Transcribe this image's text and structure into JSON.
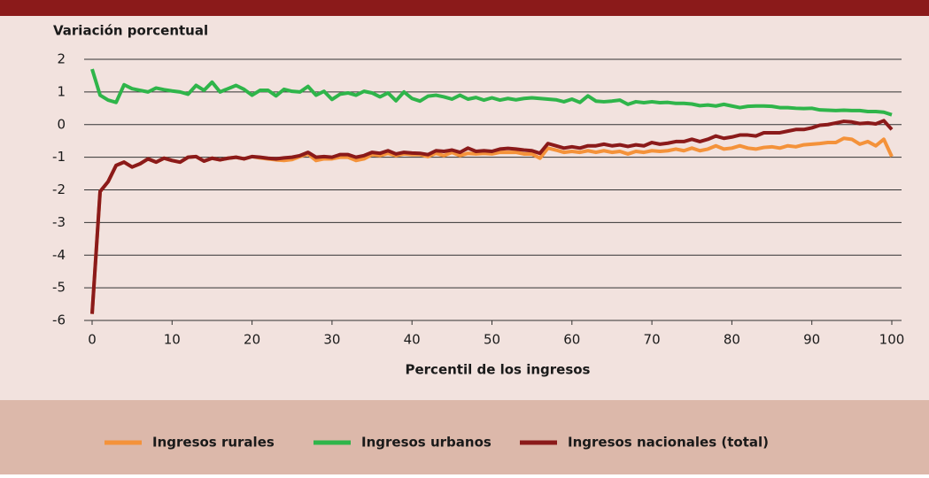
{
  "chart_data": {
    "type": "line",
    "y_axis_label": "Variación porcentual",
    "x_axis_label": "Percentil de los ingresos",
    "x": [
      0,
      1,
      2,
      3,
      4,
      5,
      6,
      7,
      8,
      9,
      10,
      11,
      12,
      13,
      14,
      15,
      16,
      17,
      18,
      19,
      20,
      21,
      22,
      23,
      24,
      25,
      26,
      27,
      28,
      29,
      30,
      31,
      32,
      33,
      34,
      35,
      36,
      37,
      38,
      39,
      40,
      41,
      42,
      43,
      44,
      45,
      46,
      47,
      48,
      49,
      50,
      51,
      52,
      53,
      54,
      55,
      56,
      57,
      58,
      59,
      60,
      61,
      62,
      63,
      64,
      65,
      66,
      67,
      68,
      69,
      70,
      71,
      72,
      73,
      74,
      75,
      76,
      77,
      78,
      79,
      80,
      81,
      82,
      83,
      84,
      85,
      86,
      87,
      88,
      89,
      90,
      91,
      92,
      93,
      94,
      95,
      96,
      97,
      98,
      99,
      100
    ],
    "series": [
      {
        "name": "Ingresos rurales",
        "color": "#f4923a",
        "values": [
          -5.8,
          -2.05,
          -1.75,
          -1.25,
          -1.15,
          -1.3,
          -1.2,
          -1.05,
          -1.15,
          -1.03,
          -1.1,
          -1.15,
          -1.0,
          -0.98,
          -1.12,
          -1.03,
          -1.08,
          -1.03,
          -1.0,
          -1.05,
          -0.98,
          -1.02,
          -1.05,
          -1.08,
          -1.1,
          -1.07,
          -0.98,
          -0.9,
          -1.1,
          -1.05,
          -1.05,
          -1.0,
          -1.0,
          -1.1,
          -1.05,
          -0.92,
          -0.95,
          -0.88,
          -0.95,
          -0.9,
          -0.92,
          -0.92,
          -0.98,
          -0.88,
          -0.95,
          -0.85,
          -0.95,
          -0.88,
          -0.9,
          -0.88,
          -0.9,
          -0.85,
          -0.85,
          -0.85,
          -0.9,
          -0.9,
          -1.03,
          -0.72,
          -0.78,
          -0.85,
          -0.82,
          -0.85,
          -0.8,
          -0.85,
          -0.8,
          -0.85,
          -0.82,
          -0.9,
          -0.82,
          -0.85,
          -0.8,
          -0.82,
          -0.8,
          -0.75,
          -0.8,
          -0.72,
          -0.8,
          -0.75,
          -0.65,
          -0.75,
          -0.72,
          -0.65,
          -0.72,
          -0.75,
          -0.7,
          -0.68,
          -0.72,
          -0.65,
          -0.68,
          -0.62,
          -0.6,
          -0.58,
          -0.55,
          -0.55,
          -0.42,
          -0.45,
          -0.6,
          -0.52,
          -0.65,
          -0.45,
          -0.98
        ]
      },
      {
        "name": "Ingresos urbanos",
        "color": "#2fb54a",
        "values": [
          1.7,
          0.9,
          0.75,
          0.68,
          1.22,
          1.1,
          1.05,
          1.0,
          1.12,
          1.07,
          1.03,
          1.0,
          0.93,
          1.2,
          1.05,
          1.3,
          1.0,
          1.1,
          1.2,
          1.08,
          0.9,
          1.05,
          1.05,
          0.88,
          1.08,
          1.02,
          1.0,
          1.17,
          0.9,
          1.02,
          0.77,
          0.93,
          0.97,
          0.9,
          1.02,
          0.97,
          0.85,
          0.97,
          0.73,
          1.0,
          0.8,
          0.72,
          0.87,
          0.9,
          0.85,
          0.78,
          0.9,
          0.78,
          0.83,
          0.75,
          0.82,
          0.75,
          0.8,
          0.76,
          0.8,
          0.82,
          0.8,
          0.78,
          0.76,
          0.7,
          0.78,
          0.68,
          0.88,
          0.72,
          0.7,
          0.72,
          0.75,
          0.62,
          0.7,
          0.67,
          0.7,
          0.67,
          0.68,
          0.65,
          0.65,
          0.63,
          0.58,
          0.6,
          0.57,
          0.62,
          0.57,
          0.52,
          0.56,
          0.57,
          0.57,
          0.56,
          0.52,
          0.52,
          0.5,
          0.49,
          0.5,
          0.45,
          0.44,
          0.43,
          0.44,
          0.43,
          0.43,
          0.4,
          0.4,
          0.38,
          0.3
        ]
      },
      {
        "name": "Ingresos nacionales (total)",
        "color": "#8b1a1a",
        "values": [
          -5.8,
          -2.05,
          -1.75,
          -1.25,
          -1.15,
          -1.3,
          -1.2,
          -1.05,
          -1.15,
          -1.03,
          -1.1,
          -1.15,
          -1.0,
          -0.98,
          -1.12,
          -1.03,
          -1.08,
          -1.03,
          -1.0,
          -1.05,
          -0.98,
          -1.0,
          -1.03,
          -1.05,
          -1.02,
          -1.0,
          -0.95,
          -0.85,
          -1.0,
          -0.98,
          -1.0,
          -0.92,
          -0.92,
          -1.0,
          -0.95,
          -0.85,
          -0.88,
          -0.8,
          -0.9,
          -0.85,
          -0.87,
          -0.88,
          -0.92,
          -0.8,
          -0.82,
          -0.78,
          -0.85,
          -0.72,
          -0.82,
          -0.8,
          -0.82,
          -0.75,
          -0.73,
          -0.75,
          -0.78,
          -0.8,
          -0.88,
          -0.58,
          -0.65,
          -0.72,
          -0.68,
          -0.72,
          -0.65,
          -0.65,
          -0.6,
          -0.65,
          -0.62,
          -0.67,
          -0.62,
          -0.65,
          -0.55,
          -0.6,
          -0.57,
          -0.52,
          -0.52,
          -0.45,
          -0.52,
          -0.45,
          -0.35,
          -0.42,
          -0.38,
          -0.32,
          -0.32,
          -0.35,
          -0.25,
          -0.25,
          -0.25,
          -0.2,
          -0.15,
          -0.15,
          -0.1,
          -0.02,
          0.0,
          0.05,
          0.1,
          0.08,
          0.03,
          0.05,
          0.02,
          0.12,
          -0.15
        ]
      }
    ],
    "xlim": [
      0,
      100
    ],
    "xticks": [
      0,
      10,
      20,
      30,
      40,
      50,
      60,
      70,
      80,
      90,
      100
    ],
    "ylim": [
      -6,
      2
    ],
    "yticks": [
      2,
      1,
      0,
      -1,
      -2,
      -3,
      -4,
      -5,
      -6
    ],
    "grid": true,
    "legend": "bottom"
  }
}
